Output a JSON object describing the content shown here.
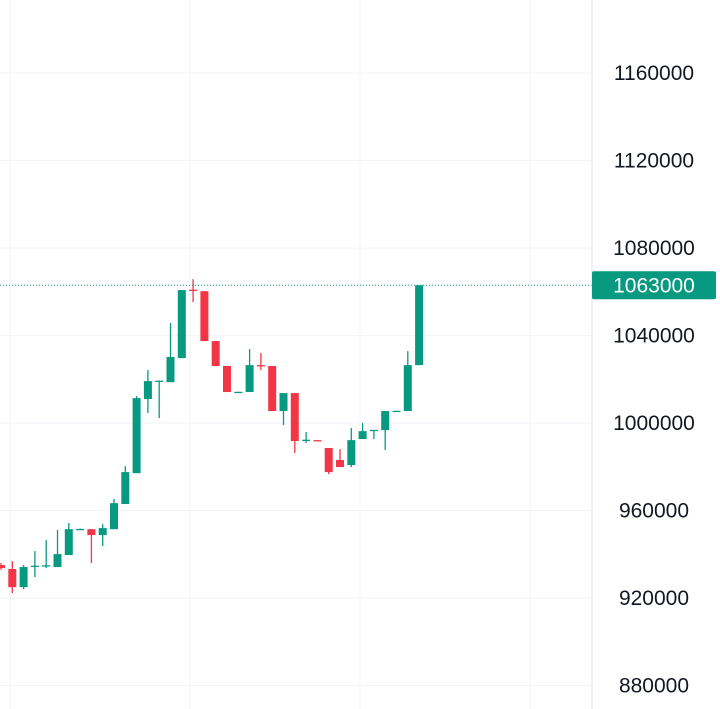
{
  "chart_data": {
    "type": "candlestick",
    "title": "",
    "xlabel": "",
    "ylabel": "",
    "ylim": [
      869300,
      1193400
    ],
    "grid": true,
    "y_ticks": [
      880000,
      920000,
      960000,
      1000000,
      1040000,
      1080000,
      1120000,
      1160000
    ],
    "y_tick_labels": [
      "880000",
      "920000",
      "960000",
      "1000000",
      "1040000",
      "1080000",
      "1120000",
      "1160000"
    ],
    "last_price": 1063000,
    "last_price_label": "1063000",
    "colors": {
      "up": "#089981",
      "down": "#f23645",
      "price_line": "#089981",
      "grid": "#f0f3fa",
      "text": "#131722"
    },
    "candles": [
      {
        "o": 935100,
        "h": 936000,
        "l": 932900,
        "c": 933700
      },
      {
        "o": 933300,
        "h": 936900,
        "l": 922300,
        "c": 925000
      },
      {
        "o": 925000,
        "h": 935100,
        "l": 924100,
        "c": 934200
      },
      {
        "o": 934600,
        "h": 941500,
        "l": 929600,
        "c": 934800
      },
      {
        "o": 934800,
        "h": 946500,
        "l": 933700,
        "c": 935000
      },
      {
        "o": 934200,
        "h": 951100,
        "l": 934200,
        "c": 940100
      },
      {
        "o": 939700,
        "h": 954300,
        "l": 939700,
        "c": 951500
      },
      {
        "o": 951500,
        "h": 951800,
        "l": 951300,
        "c": 951600
      },
      {
        "o": 951500,
        "h": 951600,
        "l": 936000,
        "c": 948800
      },
      {
        "o": 948800,
        "h": 953800,
        "l": 943800,
        "c": 952000
      },
      {
        "o": 951500,
        "h": 965300,
        "l": 951500,
        "c": 963400
      },
      {
        "o": 963000,
        "h": 980300,
        "l": 963000,
        "c": 977600
      },
      {
        "o": 977100,
        "h": 1012300,
        "l": 977100,
        "c": 1011400
      },
      {
        "o": 1011000,
        "h": 1024200,
        "l": 1004600,
        "c": 1019200
      },
      {
        "o": 1019200,
        "h": 1019500,
        "l": 1002300,
        "c": 1019400
      },
      {
        "o": 1018700,
        "h": 1045700,
        "l": 1018700,
        "c": 1030200
      },
      {
        "o": 1029700,
        "h": 1060800,
        "l": 1029700,
        "c": 1060800
      },
      {
        "o": 1061000,
        "h": 1065800,
        "l": 1055300,
        "c": 1060800
      },
      {
        "o": 1060300,
        "h": 1060300,
        "l": 1037500,
        "c": 1037500
      },
      {
        "o": 1037500,
        "h": 1037500,
        "l": 1026100,
        "c": 1026100
      },
      {
        "o": 1026100,
        "h": 1026100,
        "l": 1014200,
        "c": 1014200
      },
      {
        "o": 1014200,
        "h": 1014300,
        "l": 1014200,
        "c": 1014300
      },
      {
        "o": 1014200,
        "h": 1033800,
        "l": 1014200,
        "c": 1026500
      },
      {
        "o": 1026500,
        "h": 1032000,
        "l": 1024200,
        "c": 1026100
      },
      {
        "o": 1026100,
        "h": 1026100,
        "l": 1005500,
        "c": 1005500
      },
      {
        "o": 1005500,
        "h": 1013700,
        "l": 999100,
        "c": 1013700
      },
      {
        "o": 1013700,
        "h": 1013700,
        "l": 986300,
        "c": 991800
      },
      {
        "o": 992200,
        "h": 995900,
        "l": 990900,
        "c": 992400
      },
      {
        "o": 992200,
        "h": 992200,
        "l": 991800,
        "c": 992000
      },
      {
        "o": 988600,
        "h": 988600,
        "l": 976700,
        "c": 977600
      },
      {
        "o": 983100,
        "h": 988100,
        "l": 979900,
        "c": 979900
      },
      {
        "o": 980800,
        "h": 997700,
        "l": 979900,
        "c": 992200
      },
      {
        "o": 992700,
        "h": 1000000,
        "l": 992700,
        "c": 996300
      },
      {
        "o": 996800,
        "h": 996900,
        "l": 992700,
        "c": 996900
      },
      {
        "o": 996800,
        "h": 1005500,
        "l": 987700,
        "c": 1005500
      },
      {
        "o": 1005500,
        "h": 1005600,
        "l": 1005500,
        "c": 1005600
      },
      {
        "o": 1005500,
        "h": 1032900,
        "l": 1005500,
        "c": 1026500
      },
      {
        "o": 1026500,
        "h": 1063000,
        "l": 1026500,
        "c": 1063000
      }
    ]
  }
}
